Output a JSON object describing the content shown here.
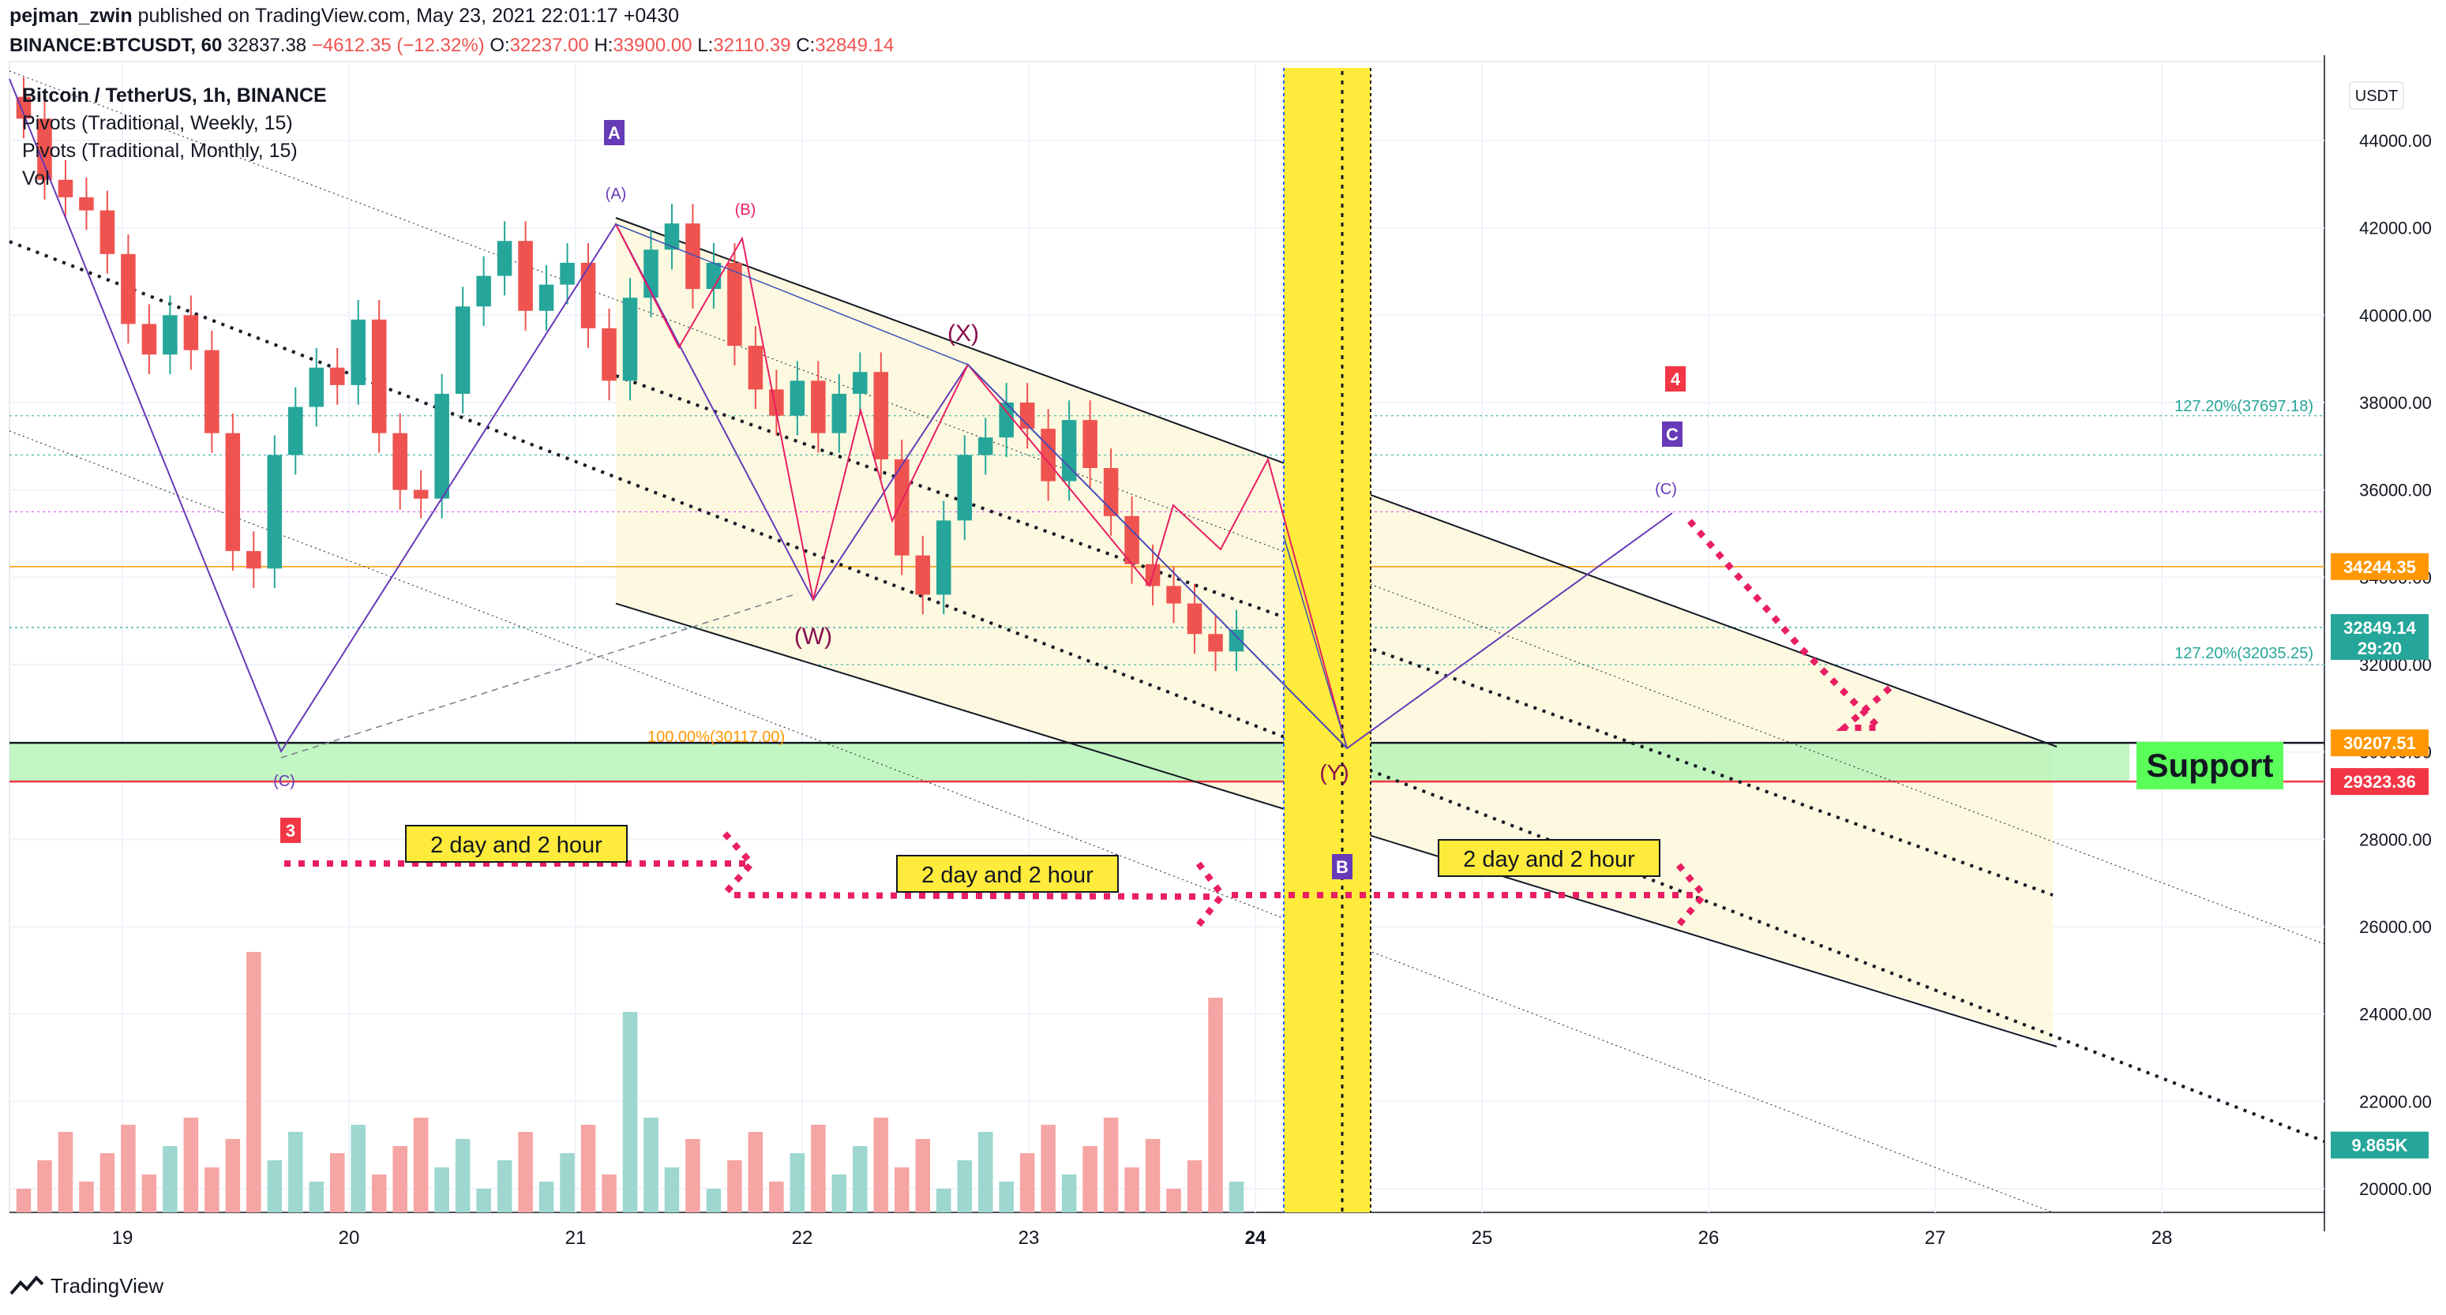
{
  "header": {
    "author": "pejman_zwin",
    "published": "published on TradingView.com, May 23, 2021 22:01:17 +0430",
    "symbol": "BINANCE:BTCUSDT, 60",
    "last": "32837.38",
    "change": "−4612.35 (−12.32%)",
    "o_label": "O:",
    "o": "32237.00",
    "h_label": "H:",
    "h": "33900.00",
    "l_label": "L:",
    "l": "32110.39",
    "c_label": "C:",
    "c": "32849.14"
  },
  "legend": {
    "title": "Bitcoin / TetherUS, 1h, BINANCE",
    "pivots_weekly": "Pivots (Traditional, Weekly, 15)",
    "pivots_monthly": "Pivots (Traditional, Monthly, 15)",
    "vol": "Vol"
  },
  "footer": {
    "brand": "TradingView"
  },
  "colors": {
    "up": "#26a69a",
    "down": "#ef5350",
    "support": "#5aff5a",
    "yellow": "#ffeb3b",
    "purple": "#673ab7",
    "wave": "#e91e63",
    "channel_fill": "#fdf8dd"
  },
  "chart_data": {
    "type": "candlestick",
    "currency_label": "USDT",
    "y_ticks": [
      20000,
      22000,
      24000,
      26000,
      28000,
      30000,
      32000,
      34000,
      36000,
      38000,
      40000,
      42000,
      44000
    ],
    "y_tick_labels": [
      "20000.00",
      "22000.00",
      "24000.00",
      "26000.00",
      "28000.00",
      "30000.00",
      "32000.00",
      "34000.00",
      "36000.00",
      "38000.00",
      "40000.00",
      "42000.00",
      "44000.00"
    ],
    "x_ticks": [
      "19",
      "20",
      "21",
      "22",
      "23",
      "24",
      "25",
      "26",
      "27",
      "28"
    ],
    "ylim": [
      19500,
      45500
    ],
    "price_tags": [
      {
        "value": 34244.35,
        "label": "34244.35",
        "color": "#ff9800"
      },
      {
        "value": 32849.14,
        "label": "32849.14",
        "sub": "29:20",
        "color": "#26a69a"
      },
      {
        "value": 30207.51,
        "label": "30207.51",
        "color": "#ff9800"
      },
      {
        "value": 29323.36,
        "label": "29323.36",
        "color": "#f23645"
      },
      {
        "value": 21000,
        "label": "9.865K",
        "color": "#26a69a"
      }
    ],
    "fib_labels": [
      {
        "text": "127.20%(37697.18)",
        "value": 37697.18
      },
      {
        "text": "127.20%(32035.25)",
        "value": 32035.25
      },
      {
        "text": "100.00%(30117.00)",
        "value": 30117.0
      }
    ],
    "support_zone": {
      "low": 29323.36,
      "high": 30207.51,
      "label": "Support"
    },
    "annotations": {
      "wave_labels": [
        "A",
        "(A)",
        "(B)",
        "(X)",
        "(W)",
        "(Y)",
        "(C)",
        "B",
        "C",
        "4",
        "3"
      ],
      "time_labels": [
        "2 day and 2 hour",
        "2 day and 2 hour",
        "2 day and 2 hour"
      ]
    },
    "closes": [
      44500,
      43100,
      42700,
      42400,
      41400,
      39800,
      39100,
      40000,
      39200,
      37300,
      34600,
      34200,
      36800,
      37900,
      38800,
      38400,
      39900,
      37300,
      36000,
      35800,
      38200,
      40200,
      40900,
      41700,
      40100,
      40700,
      41200,
      39700,
      38500,
      40400,
      41500,
      42100,
      40600,
      41200,
      39300,
      38300,
      37700,
      38500,
      37300,
      38200,
      38700,
      36700,
      34500,
      33600,
      35300,
      36800,
      37200,
      38000,
      37400,
      36200,
      37600,
      36500,
      35400,
      34300,
      33800,
      33400,
      32700,
      32300,
      32800
    ]
  }
}
